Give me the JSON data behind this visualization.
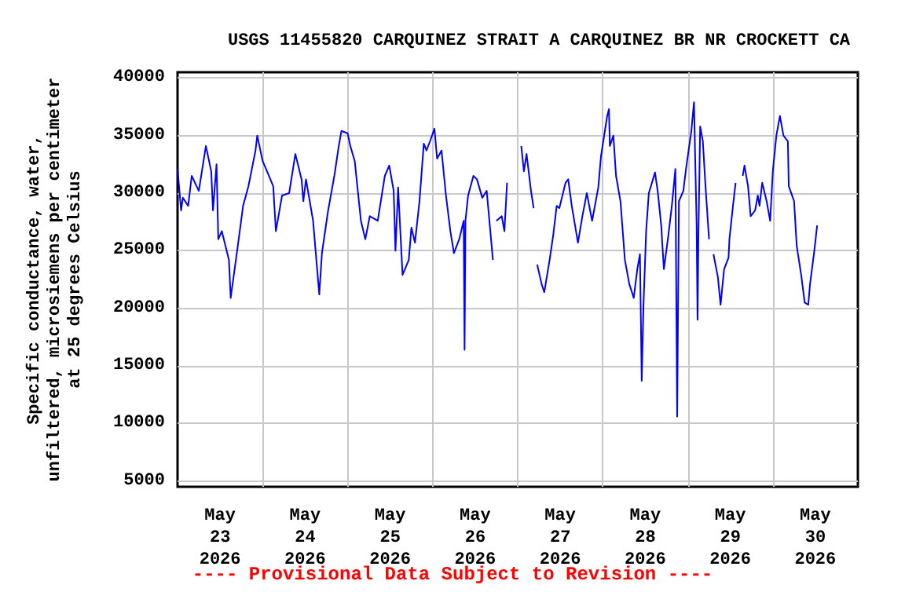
{
  "chart_data": {
    "type": "line",
    "title": "USGS 11455820 CARQUINEZ STRAIT A CARQUINEZ BR NR CROCKETT CA",
    "ylabel": "Specific conductance, water,\nunfiltered, microsiemens per centimeter\nat 25 degrees Celsius",
    "annotations": [
      "---- Provisional Data Subject to Revision ----"
    ],
    "color": "#0000ff",
    "x": [
      "2026-05-23T00:00",
      "2026-05-23T01:00",
      "2026-05-23T01:30",
      "2026-05-23T03:00",
      "2026-05-23T04:00",
      "2026-05-23T06:00",
      "2026-05-23T08:00",
      "2026-05-23T09:30",
      "2026-05-23T10:00",
      "2026-05-23T11:00",
      "2026-05-23T11:30",
      "2026-05-23T12:30",
      "2026-05-23T14:30",
      "2026-05-23T15:00",
      "2026-05-23T17:00",
      "2026-05-23T18:30",
      "2026-05-23T20:00",
      "2026-05-23T22:00",
      "2026-05-23T22:30",
      "2026-05-24T00:00",
      "2026-05-24T01:15",
      "2026-05-24T03:00",
      "2026-05-24T03:45",
      "2026-05-24T05:30",
      "2026-05-24T07:30",
      "2026-05-24T09:15",
      "2026-05-24T11:00",
      "2026-05-24T11:30",
      "2026-05-24T12:15",
      "2026-05-24T14:15",
      "2026-05-24T16:00",
      "2026-05-24T16:45",
      "2026-05-24T18:30",
      "2026-05-24T20:15",
      "2026-05-24T21:30",
      "2026-05-24T22:15",
      "2026-05-25T00:00",
      "2026-05-25T00:45",
      "2026-05-25T02:00",
      "2026-05-25T03:45",
      "2026-05-25T05:00",
      "2026-05-25T06:15",
      "2026-05-25T08:30",
      "2026-05-25T10:30",
      "2026-05-25T11:45",
      "2026-05-25T13:00",
      "2026-05-25T13:30",
      "2026-05-25T14:15",
      "2026-05-25T15:30",
      "2026-05-25T17:15",
      "2026-05-25T18:00",
      "2026-05-25T19:00",
      "2026-05-25T20:15",
      "2026-05-25T21:30",
      "2026-05-25T22:15",
      "2026-05-25T23:15",
      "2026-05-26T00:30",
      "2026-05-26T01:15",
      "2026-05-26T02:30",
      "2026-05-26T03:45",
      "2026-05-26T05:00",
      "2026-05-26T06:00",
      "2026-05-26T07:30",
      "2026-05-26T08:45",
      "2026-05-26T09:00",
      "2026-05-26T09:15",
      "2026-05-26T10:00",
      "2026-05-26T11:30",
      "2026-05-26T12:30",
      "2026-05-26T14:00",
      "2026-05-26T15:15",
      "2026-05-26T17:00",
      "2026-05-26T17:30",
      "2026-05-26T18:00",
      "2026-05-26T19:30",
      "2026-05-26T20:15",
      "2026-05-26T21:00",
      "2026-05-26T22:00",
      "2026-05-27T01:00",
      "2026-05-27T01:45",
      "2026-05-27T02:30",
      "2026-05-27T03:45",
      "2026-05-27T04:30",
      "2026-05-27T05:00",
      "2026-05-27T05:30",
      "2026-05-27T06:45",
      "2026-05-27T07:30",
      "2026-05-27T09:00",
      "2026-05-27T10:00",
      "2026-05-27T11:00",
      "2026-05-27T11:45",
      "2026-05-27T13:30",
      "2026-05-27T14:15",
      "2026-05-27T15:15",
      "2026-05-27T17:00",
      "2026-05-27T18:15",
      "2026-05-27T19:30",
      "2026-05-27T21:00",
      "2026-05-27T22:45",
      "2026-05-27T23:30",
      "2026-05-28T01:15",
      "2026-05-28T01:45",
      "2026-05-28T02:00",
      "2026-05-28T03:00",
      "2026-05-28T03:45",
      "2026-05-28T05:00",
      "2026-05-28T06:15",
      "2026-05-28T07:30",
      "2026-05-28T08:45",
      "2026-05-28T09:45",
      "2026-05-28T10:30",
      "2026-05-28T11:00",
      "2026-05-28T11:30",
      "2026-05-28T12:15",
      "2026-05-28T13:00",
      "2026-05-28T14:45",
      "2026-05-28T15:30",
      "2026-05-28T16:30",
      "2026-05-28T17:15",
      "2026-05-28T18:30",
      "2026-05-28T19:30",
      "2026-05-28T20:30",
      "2026-05-28T21:00",
      "2026-05-28T21:30",
      "2026-05-28T22:45",
      "2026-05-28T23:30",
      "2026-05-29T01:00",
      "2026-05-29T01:45",
      "2026-05-29T02:30",
      "2026-05-29T02:45",
      "2026-05-29T03:00",
      "2026-05-29T03:30",
      "2026-05-29T04:15",
      "2026-05-29T05:00",
      "2026-05-29T06:00",
      "2026-05-29T06:30",
      "2026-05-29T07:15",
      "2026-05-29T08:30",
      "2026-05-29T09:15",
      "2026-05-29T10:15",
      "2026-05-29T11:30",
      "2026-05-29T11:45",
      "2026-05-29T12:45",
      "2026-05-29T13:30",
      "2026-05-29T14:30",
      "2026-05-29T15:30",
      "2026-05-29T16:00",
      "2026-05-29T17:00",
      "2026-05-29T17:45",
      "2026-05-29T19:00",
      "2026-05-29T19:45",
      "2026-05-29T20:15",
      "2026-05-29T21:00",
      "2026-05-29T22:15",
      "2026-05-29T23:15",
      "2026-05-30T00:00",
      "2026-05-30T01:00",
      "2026-05-30T02:00",
      "2026-05-30T03:00",
      "2026-05-30T04:15",
      "2026-05-30T04:30",
      "2026-05-30T06:00",
      "2026-05-30T06:45",
      "2026-05-30T08:00",
      "2026-05-30T09:00",
      "2026-05-30T10:00",
      "2026-05-30T10:30",
      "2026-05-30T11:45",
      "2026-05-30T12:30"
    ],
    "values": [
      32100,
      28500,
      29600,
      28900,
      31500,
      30200,
      34100,
      31900,
      28500,
      32500,
      26000,
      26700,
      24200,
      20900,
      25400,
      28900,
      30600,
      33700,
      35000,
      32800,
      31900,
      30600,
      26700,
      29800,
      30000,
      33400,
      31200,
      29300,
      31200,
      27600,
      21200,
      24800,
      28500,
      31500,
      34100,
      35400,
      35200,
      34100,
      32800,
      27600,
      26000,
      28000,
      27600,
      31500,
      32400,
      30200,
      25000,
      30500,
      22900,
      24200,
      27000,
      25700,
      29200,
      34300,
      33700,
      34500,
      35600,
      33000,
      33700,
      29800,
      26700,
      24800,
      26000,
      27600,
      16400,
      27600,
      29800,
      31500,
      31200,
      29600,
      30200,
      24200,
      null,
      27600,
      28000,
      26700,
      30900,
      null,
      34100,
      31900,
      33400,
      30200,
      28700,
      null,
      23800,
      22100,
      21400,
      24200,
      26300,
      28900,
      28700,
      30900,
      31200,
      28900,
      25700,
      28000,
      30000,
      27600,
      30500,
      33200,
      36700,
      37300,
      34100,
      35000,
      31500,
      29300,
      24200,
      22100,
      20900,
      23400,
      24700,
      13700,
      20300,
      26700,
      30000,
      31800,
      30200,
      27200,
      23400,
      26300,
      28900,
      32100,
      10600,
      29300,
      30200,
      32100,
      35400,
      37900,
      27200,
      19000,
      26300,
      35800,
      34500,
      30600,
      26000,
      null,
      24700,
      22700,
      20300,
      23400,
      24400,
      26000,
      28900,
      30900,
      null,
      31500,
      32400,
      30600,
      28000,
      28500,
      29800,
      28900,
      30900,
      29300,
      27600,
      31900,
      35000,
      36700,
      35000,
      34500,
      30600,
      29300,
      25400,
      22900,
      20500,
      20300,
      22100,
      25100,
      27200
    ],
    "xlim": [
      "2026-05-23",
      "2026-05-31"
    ],
    "xticks": [
      {
        "value": "2026-05-23T12:00",
        "label": "May\n23\n2026"
      },
      {
        "value": "2026-05-24T00:00",
        "label": null
      },
      {
        "value": "2026-05-24T12:00",
        "label": "May\n24\n2026"
      },
      {
        "value": "2026-05-25T00:00",
        "label": null
      },
      {
        "value": "2026-05-25T12:00",
        "label": "May\n25\n2026"
      },
      {
        "value": "2026-05-26T00:00",
        "label": null
      },
      {
        "value": "2026-05-26T12:00",
        "label": "May\n26\n2026"
      },
      {
        "value": "2026-05-27T00:00",
        "label": null
      },
      {
        "value": "2026-05-27T12:00",
        "label": "May\n27\n2026"
      },
      {
        "value": "2026-05-28T00:00",
        "label": null
      },
      {
        "value": "2026-05-28T12:00",
        "label": "May\n28\n2026"
      },
      {
        "value": "2026-05-29T00:00",
        "label": null
      },
      {
        "value": "2026-05-29T12:00",
        "label": "May\n29\n2026"
      },
      {
        "value": "2026-05-30T00:00",
        "label": null
      },
      {
        "value": "2026-05-30T12:00",
        "label": "May\n30\n2026"
      }
    ],
    "ylim": [
      4500,
      40500
    ],
    "yticks": [
      5000,
      10000,
      15000,
      20000,
      25000,
      30000,
      35000,
      40000
    ],
    "grid": true
  }
}
